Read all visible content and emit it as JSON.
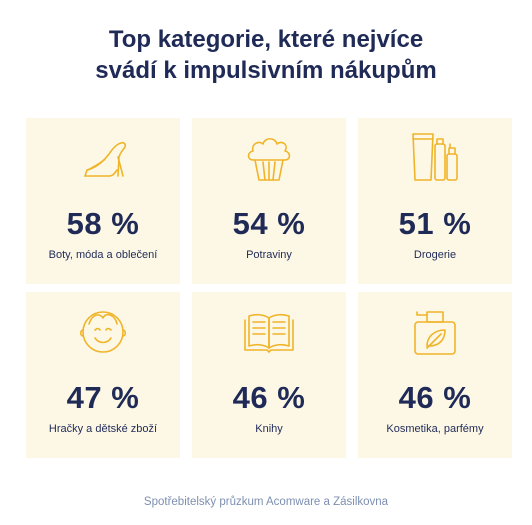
{
  "title": {
    "line1": "Top kategorie, které nejvíce",
    "line2": "svádí k impulsivním nákupům"
  },
  "accent_color": "#f0b429",
  "text_color": "#1f2a57",
  "card_bg": "#fdf8e6",
  "categories": [
    {
      "percent": "58 %",
      "label": "Boty, móda a oblečení",
      "icon": "high-heel-shoe-icon"
    },
    {
      "percent": "54 %",
      "label": "Potraviny",
      "icon": "cupcake-icon"
    },
    {
      "percent": "51 %",
      "label": "Drogerie",
      "icon": "toiletries-bottles-icon"
    },
    {
      "percent": "47 %",
      "label": "Hračky a dětské zboží",
      "icon": "child-face-icon"
    },
    {
      "percent": "46 %",
      "label": "Knihy",
      "icon": "open-book-icon"
    },
    {
      "percent": "46 %",
      "label": "Kosmetika, parfémy",
      "icon": "perfume-leaf-icon"
    }
  ],
  "footer": "Spotřebitelský průzkum Acomware a Zásilkovna"
}
